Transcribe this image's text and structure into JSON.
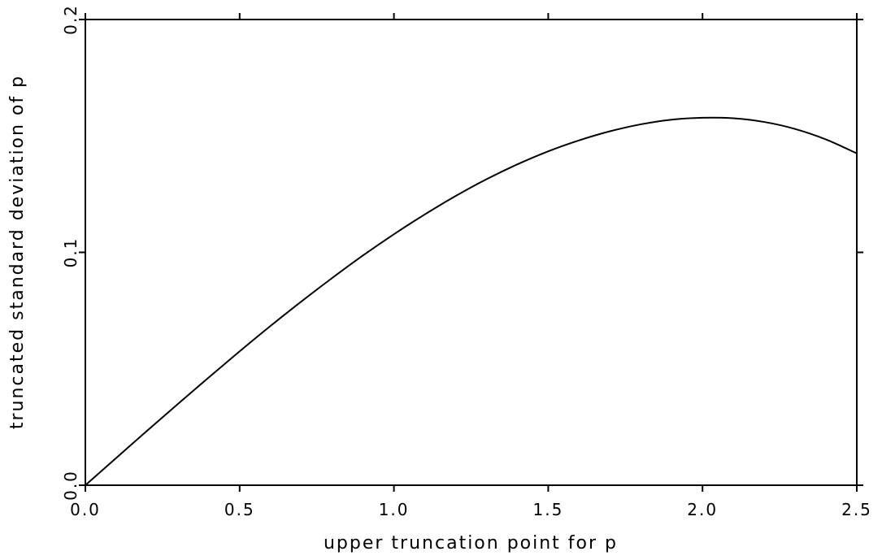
{
  "chart_data": {
    "type": "line",
    "xlabel": "upper truncation point for p",
    "ylabel": "truncated standard deviation of p",
    "xlim": [
      0,
      2.5
    ],
    "ylim": [
      0,
      0.2
    ],
    "xticks": [
      "0.0",
      "0.5",
      "1.0",
      "1.5",
      "2.0",
      "2.5"
    ],
    "yticks": [
      "0.0",
      "0.1",
      "0.2"
    ],
    "grid": false,
    "series": [
      {
        "x": [
          0.0,
          0.1,
          0.2,
          0.3,
          0.4,
          0.5,
          0.6,
          0.7,
          0.8,
          0.9,
          1.0,
          1.1,
          1.2,
          1.3,
          1.4,
          1.5,
          1.6,
          1.7,
          1.8,
          1.9,
          2.0,
          2.1,
          2.2,
          2.3,
          2.4,
          2.5
        ],
        "y": [
          0.0,
          0.0117,
          0.0234,
          0.0349,
          0.0463,
          0.0575,
          0.0684,
          0.0789,
          0.089,
          0.0987,
          0.1078,
          0.1163,
          0.1242,
          0.1314,
          0.1378,
          0.1434,
          0.1481,
          0.152,
          0.155,
          0.157,
          0.1578,
          0.1576,
          0.156,
          0.153,
          0.1485,
          0.1425
        ]
      }
    ],
    "colors": {
      "line": "#000000",
      "axes": "#000000"
    }
  }
}
